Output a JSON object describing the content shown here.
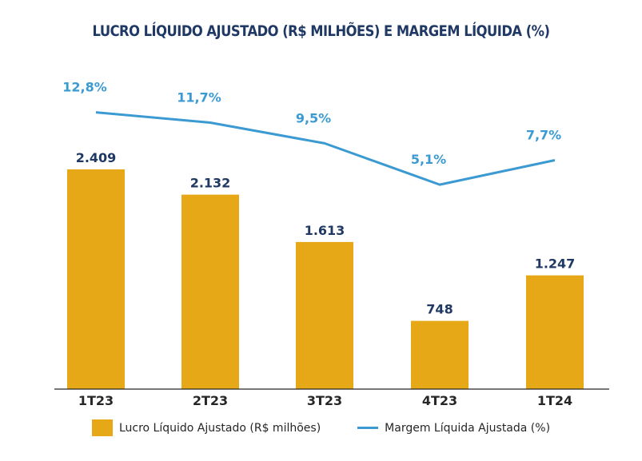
{
  "chart_data": {
    "type": "bar",
    "title": "LUCRO LÍQUIDO AJUSTADO (R$ MILHÕES) E MARGEM LÍQUIDA (%)",
    "categories": [
      "1T23",
      "2T23",
      "3T23",
      "4T23",
      "1T24"
    ],
    "series": [
      {
        "name": "Lucro Líquido Ajustado (R$ milhões)",
        "type": "bar",
        "values": [
          2409,
          2132,
          1613,
          748,
          1247
        ],
        "labels": [
          "2.409",
          "2.132",
          "1.613",
          "748",
          "1.247"
        ],
        "color": "#e6a817"
      },
      {
        "name": "Margem Líquida Ajustada (%)",
        "type": "line",
        "values": [
          12.8,
          11.7,
          9.5,
          5.1,
          7.7
        ],
        "labels": [
          "12,8%",
          "11,7%",
          "9,5%",
          "5,1%",
          "7,7%"
        ],
        "color": "#3b9ad2"
      }
    ],
    "bar_label_color": "#1f3864",
    "line_label_color": "#3b9ad2",
    "title_color": "#1f3864",
    "grid": false,
    "legend_position": "bottom"
  }
}
